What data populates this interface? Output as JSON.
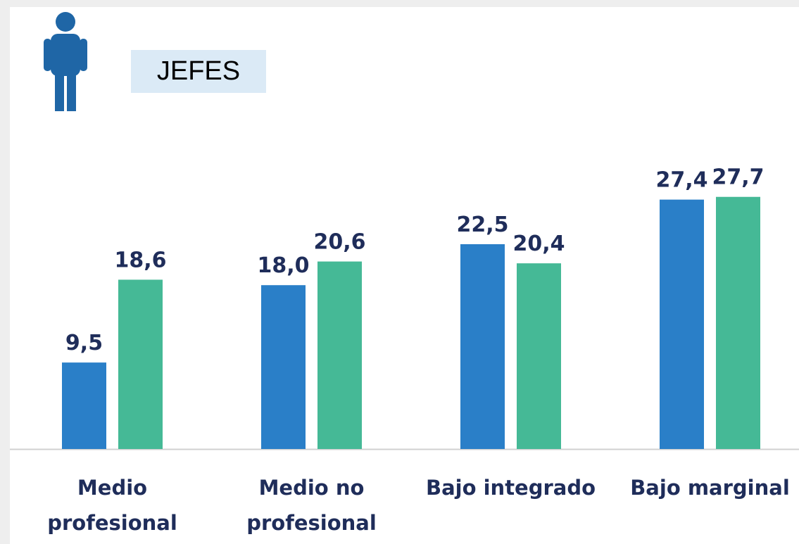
{
  "chart_data": {
    "type": "bar",
    "title": "JEFES",
    "categories": [
      "Medio\nprofesional",
      "Medio no\nprofesional",
      "Bajo integrado",
      "Bajo marginal"
    ],
    "series": [
      {
        "color": "#2a7fc8",
        "values": [
          9.5,
          18.0,
          22.5,
          27.4
        ],
        "value_labels": [
          "9,5",
          "18,0",
          "22,5",
          "27,4"
        ]
      },
      {
        "color": "#45b996",
        "values": [
          18.6,
          20.6,
          20.4,
          27.7
        ],
        "value_labels": [
          "18,6",
          "20,6",
          "20,4",
          "27,7"
        ]
      }
    ],
    "ylim": [
      0,
      30
    ]
  }
}
